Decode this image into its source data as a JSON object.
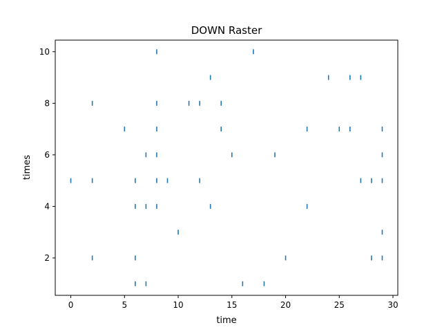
{
  "chart_data": {
    "type": "scatter",
    "subtype": "raster",
    "title": "DOWN Raster",
    "xlabel": "time",
    "ylabel": "times",
    "xlim": [
      -1.45,
      30.45
    ],
    "ylim": [
      0.55,
      10.45
    ],
    "xticks": [
      0,
      5,
      10,
      15,
      20,
      25,
      30
    ],
    "yticks": [
      2,
      4,
      6,
      8,
      10
    ],
    "grid": false,
    "marker": "vertical-tick",
    "color": "#1f77b4",
    "series": [
      {
        "values": [
          [
            6,
            1
          ],
          [
            7,
            1
          ],
          [
            16,
            1
          ],
          [
            18,
            1
          ],
          [
            2,
            2
          ],
          [
            6,
            2
          ],
          [
            20,
            2
          ],
          [
            28,
            2
          ],
          [
            29,
            2
          ],
          [
            10,
            3
          ],
          [
            29,
            3
          ],
          [
            6,
            4
          ],
          [
            7,
            4
          ],
          [
            8,
            4
          ],
          [
            13,
            4
          ],
          [
            22,
            4
          ],
          [
            0,
            5
          ],
          [
            2,
            5
          ],
          [
            6,
            5
          ],
          [
            8,
            5
          ],
          [
            9,
            5
          ],
          [
            12,
            5
          ],
          [
            27,
            5
          ],
          [
            28,
            5
          ],
          [
            29,
            5
          ],
          [
            7,
            6
          ],
          [
            8,
            6
          ],
          [
            15,
            6
          ],
          [
            19,
            6
          ],
          [
            29,
            6
          ],
          [
            5,
            7
          ],
          [
            8,
            7
          ],
          [
            14,
            7
          ],
          [
            22,
            7
          ],
          [
            25,
            7
          ],
          [
            26,
            7
          ],
          [
            29,
            7
          ],
          [
            2,
            8
          ],
          [
            8,
            8
          ],
          [
            11,
            8
          ],
          [
            12,
            8
          ],
          [
            14,
            8
          ],
          [
            13,
            9
          ],
          [
            24,
            9
          ],
          [
            26,
            9
          ],
          [
            27,
            9
          ],
          [
            8,
            10
          ],
          [
            17,
            10
          ]
        ]
      }
    ]
  }
}
